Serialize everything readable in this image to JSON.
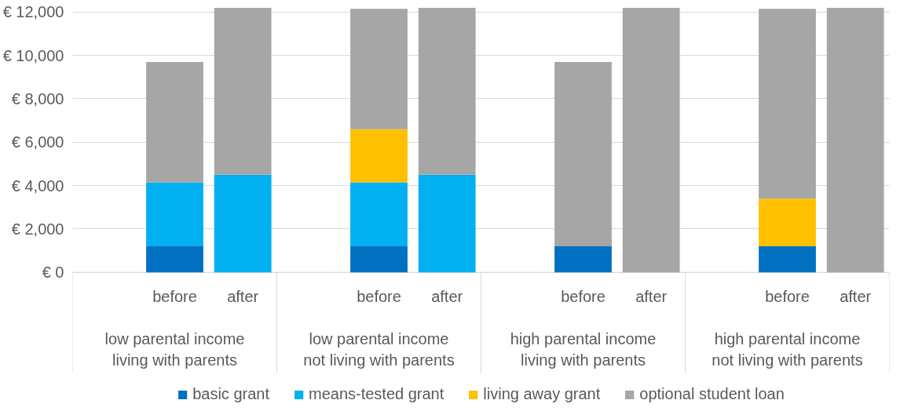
{
  "chart_data": {
    "type": "bar",
    "stacked": true,
    "categories": [
      null,
      "before",
      "after",
      null,
      "before",
      "after",
      null,
      "before",
      "after",
      null,
      "before",
      "after"
    ],
    "series": [
      {
        "name": "basic grant",
        "color": "#0070c0",
        "values": [
          null,
          1200,
          0,
          null,
          1200,
          0,
          null,
          1200,
          0,
          null,
          1200,
          0
        ]
      },
      {
        "name": "means-tested grant",
        "color": "#00b0f0",
        "values": [
          null,
          2950,
          4500,
          null,
          2950,
          4500,
          null,
          0,
          0,
          null,
          0,
          0
        ]
      },
      {
        "name": "living away grant",
        "color": "#ffc000",
        "values": [
          null,
          0,
          0,
          null,
          2450,
          0,
          null,
          0,
          0,
          null,
          2200,
          0
        ]
      },
      {
        "name": "optional student loan",
        "color": "#a6a6a6",
        "values": [
          null,
          5550,
          7700,
          null,
          5550,
          7700,
          null,
          8500,
          12200,
          null,
          8750,
          12200
        ]
      }
    ],
    "annotations": [
      "low parental income\nliving with parents",
      "low parental income\nnot living with parents",
      "high parental income\nliving with parents",
      "high parental income\nnot living with parents"
    ],
    "ylim": [
      0,
      12250
    ],
    "yticks": [
      {
        "value": 0,
        "label": "€ 0"
      },
      {
        "value": 2000,
        "label": "€ 2,000"
      },
      {
        "value": 4000,
        "label": "€ 4,000"
      },
      {
        "value": 6000,
        "label": "€ 6,000"
      },
      {
        "value": 8000,
        "label": "€ 8,000"
      },
      {
        "value": 10000,
        "label": "€ 10,000"
      },
      {
        "value": 12000,
        "label": "€ 12,000"
      }
    ],
    "grid": "y",
    "legend": "bottom"
  }
}
